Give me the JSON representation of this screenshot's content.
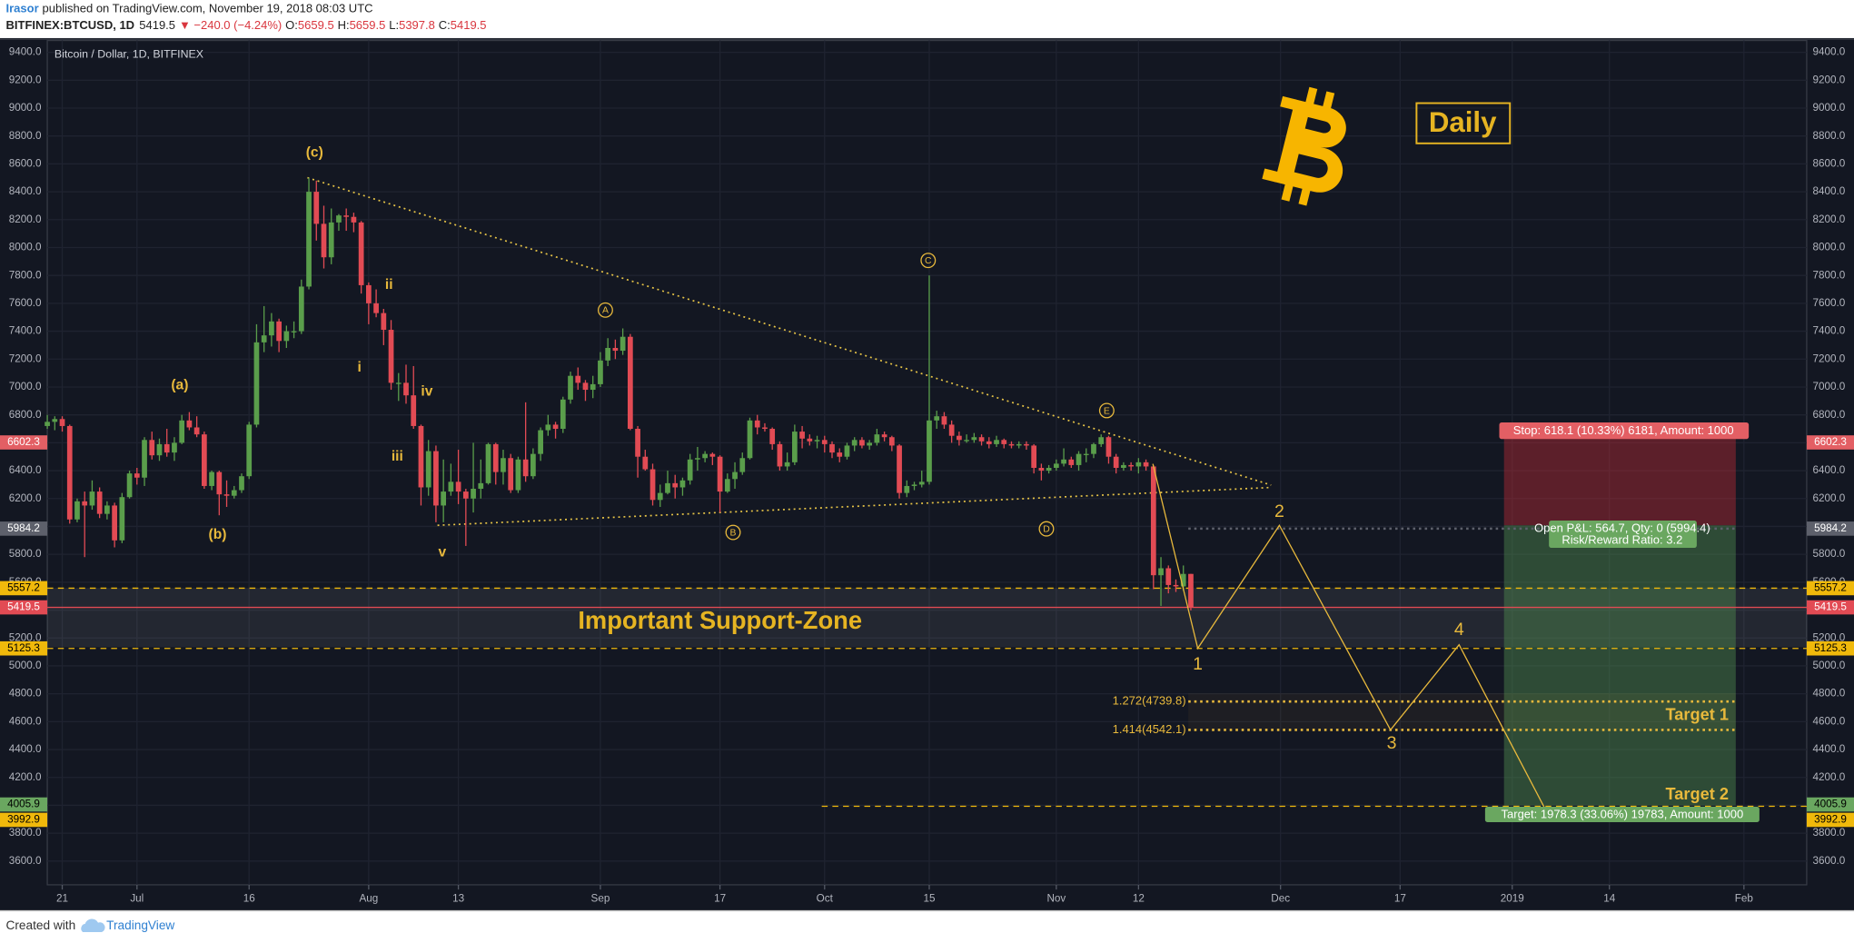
{
  "header": {
    "author": "Irasor",
    "published": "published on TradingView.com, November 19, 2018 08:03 UTC",
    "quote": {
      "symbol": "BITFINEX:BTCUSD, 1D",
      "last": "5419.5",
      "change": "▼ −240.0 (−4.24%)",
      "open_key": "O:",
      "open": "5659.5",
      "high_key": "H:",
      "high": "5659.5",
      "low_key": "L:",
      "low": "5397.8",
      "close_key": "C:",
      "close": "5419.5"
    }
  },
  "chart_data": {
    "type": "candlestick",
    "title": "Bitcoin / Dollar, 1D, BITFINEX",
    "up_color": "#5a9e4b",
    "down_color": "#e24b54",
    "grid": true,
    "xlim": [
      0,
      235.4
    ],
    "xticks": [
      {
        "value": 2,
        "label": "21"
      },
      {
        "value": 12,
        "label": "Jul"
      },
      {
        "value": 27,
        "label": "16"
      },
      {
        "value": 43,
        "label": "Aug"
      },
      {
        "value": 55,
        "label": "13"
      },
      {
        "value": 74,
        "label": "Sep"
      },
      {
        "value": 90,
        "label": "17"
      },
      {
        "value": 104,
        "label": "Oct"
      },
      {
        "value": 118,
        "label": "15"
      },
      {
        "value": 135,
        "label": "Nov"
      },
      {
        "value": 146,
        "label": "12"
      },
      {
        "value": 165,
        "label": "Dec"
      },
      {
        "value": 181,
        "label": "17"
      },
      {
        "value": 196,
        "label": "2019"
      },
      {
        "value": 209,
        "label": "14"
      },
      {
        "value": 227,
        "label": "Feb"
      }
    ],
    "ylim": [
      3430,
      9485
    ],
    "yticks": [
      {
        "value": 3600,
        "label": "3600.0"
      },
      {
        "value": 3800,
        "label": "3800.0"
      },
      {
        "value": 4000,
        "label": "4000.0"
      },
      {
        "value": 4200,
        "label": "4200.0"
      },
      {
        "value": 4400,
        "label": "4400.0"
      },
      {
        "value": 4600,
        "label": "4600.0"
      },
      {
        "value": 4800,
        "label": "4800.0"
      },
      {
        "value": 5000,
        "label": "5000.0"
      },
      {
        "value": 5200,
        "label": "5200.0"
      },
      {
        "value": 5400,
        "label": "5400.0"
      },
      {
        "value": 5600,
        "label": "5600.0"
      },
      {
        "value": 5800,
        "label": "5800.0"
      },
      {
        "value": 6000,
        "label": "6000.0"
      },
      {
        "value": 6200,
        "label": "6200.0"
      },
      {
        "value": 6400,
        "label": "6400.0"
      },
      {
        "value": 6600,
        "label": "6600.0"
      },
      {
        "value": 6800,
        "label": "6800.0"
      },
      {
        "value": 7000,
        "label": "7000.0"
      },
      {
        "value": 7200,
        "label": "7200.0"
      },
      {
        "value": 7400,
        "label": "7400.0"
      },
      {
        "value": 7600,
        "label": "7600.0"
      },
      {
        "value": 7800,
        "label": "7800.0"
      },
      {
        "value": 8000,
        "label": "8000.0"
      },
      {
        "value": 8200,
        "label": "8200.0"
      },
      {
        "value": 8400,
        "label": "8400.0"
      },
      {
        "value": 8600,
        "label": "8600.0"
      },
      {
        "value": 8800,
        "label": "8800.0"
      },
      {
        "value": 9000,
        "label": "9000.0"
      },
      {
        "value": 9200,
        "label": "9200.0"
      },
      {
        "value": 9400,
        "label": "9400.0"
      }
    ],
    "candles": [
      [
        6720,
        6800,
        6700,
        6750
      ],
      [
        6750,
        6790,
        6690,
        6770
      ],
      [
        6770,
        6790,
        6680,
        6720
      ],
      [
        6720,
        6730,
        6020,
        6050
      ],
      [
        6050,
        6200,
        6030,
        6180
      ],
      [
        6180,
        6250,
        5780,
        6150
      ],
      [
        6150,
        6330,
        6120,
        6250
      ],
      [
        6250,
        6280,
        6060,
        6090
      ],
      [
        6090,
        6180,
        6050,
        6150
      ],
      [
        6150,
        6170,
        5850,
        5900
      ],
      [
        5900,
        6240,
        5880,
        6210
      ],
      [
        6210,
        6400,
        6200,
        6380
      ],
      [
        6380,
        6420,
        6300,
        6350
      ],
      [
        6350,
        6640,
        6290,
        6620
      ],
      [
        6620,
        6680,
        6480,
        6510
      ],
      [
        6510,
        6630,
        6470,
        6590
      ],
      [
        6590,
        6700,
        6500,
        6530
      ],
      [
        6530,
        6640,
        6470,
        6600
      ],
      [
        6600,
        6800,
        6590,
        6760
      ],
      [
        6760,
        6820,
        6690,
        6710
      ],
      [
        6710,
        6790,
        6640,
        6660
      ],
      [
        6660,
        6680,
        6270,
        6290
      ],
      [
        6290,
        6400,
        6260,
        6390
      ],
      [
        6390,
        6400,
        6080,
        6230
      ],
      [
        6230,
        6330,
        6140,
        6220
      ],
      [
        6220,
        6290,
        6200,
        6260
      ],
      [
        6260,
        6380,
        6240,
        6360
      ],
      [
        6360,
        6750,
        6340,
        6730
      ],
      [
        6730,
        7450,
        6710,
        7320
      ],
      [
        7320,
        7580,
        7250,
        7370
      ],
      [
        7370,
        7530,
        7290,
        7470
      ],
      [
        7470,
        7490,
        7250,
        7330
      ],
      [
        7330,
        7440,
        7280,
        7400
      ],
      [
        7400,
        7470,
        7350,
        7400
      ],
      [
        7400,
        7770,
        7380,
        7720
      ],
      [
        7720,
        8500,
        7700,
        8400
      ],
      [
        8400,
        8480,
        8050,
        8170
      ],
      [
        8170,
        8300,
        7850,
        7930
      ],
      [
        7930,
        8280,
        7880,
        8180
      ],
      [
        8180,
        8240,
        8120,
        8230
      ],
      [
        8230,
        8280,
        8120,
        8220
      ],
      [
        8220,
        8250,
        8110,
        8180
      ],
      [
        8180,
        8190,
        7670,
        7730
      ],
      [
        7730,
        7750,
        7450,
        7600
      ],
      [
        7600,
        7700,
        7500,
        7530
      ],
      [
        7530,
        7560,
        7300,
        7410
      ],
      [
        7410,
        7480,
        6980,
        7030
      ],
      [
        7030,
        7100,
        6900,
        7030
      ],
      [
        7030,
        7160,
        6880,
        6940
      ],
      [
        6940,
        7150,
        6700,
        6720
      ],
      [
        6720,
        6730,
        6150,
        6280
      ],
      [
        6280,
        6620,
        6220,
        6540
      ],
      [
        6540,
        6580,
        6030,
        6150
      ],
      [
        6150,
        6480,
        6030,
        6250
      ],
      [
        6250,
        6450,
        6220,
        6320
      ],
      [
        6320,
        6550,
        6160,
        6250
      ],
      [
        6250,
        6270,
        5860,
        6200
      ],
      [
        6200,
        6600,
        6100,
        6270
      ],
      [
        6270,
        6480,
        6200,
        6310
      ],
      [
        6310,
        6600,
        6300,
        6590
      ],
      [
        6590,
        6600,
        6300,
        6390
      ],
      [
        6390,
        6550,
        6300,
        6490
      ],
      [
        6490,
        6520,
        6240,
        6260
      ],
      [
        6260,
        6500,
        6240,
        6480
      ],
      [
        6480,
        6890,
        6320,
        6360
      ],
      [
        6360,
        6560,
        6340,
        6520
      ],
      [
        6520,
        6710,
        6470,
        6690
      ],
      [
        6690,
        6800,
        6650,
        6730
      ],
      [
        6730,
        6750,
        6630,
        6700
      ],
      [
        6700,
        6930,
        6670,
        6910
      ],
      [
        6910,
        7110,
        6880,
        7080
      ],
      [
        7080,
        7140,
        6980,
        7030
      ],
      [
        7030,
        7050,
        6900,
        6980
      ],
      [
        6980,
        7080,
        6920,
        7020
      ],
      [
        7020,
        7250,
        7000,
        7190
      ],
      [
        7190,
        7350,
        7150,
        7280
      ],
      [
        7280,
        7340,
        7200,
        7260
      ],
      [
        7260,
        7420,
        7230,
        7360
      ],
      [
        7360,
        7380,
        6690,
        6700
      ],
      [
        6700,
        6720,
        6350,
        6500
      ],
      [
        6500,
        6550,
        6400,
        6410
      ],
      [
        6410,
        6450,
        6150,
        6190
      ],
      [
        6190,
        6300,
        6140,
        6240
      ],
      [
        6240,
        6400,
        6230,
        6310
      ],
      [
        6310,
        6370,
        6200,
        6280
      ],
      [
        6280,
        6350,
        6220,
        6330
      ],
      [
        6330,
        6520,
        6300,
        6480
      ],
      [
        6480,
        6570,
        6400,
        6490
      ],
      [
        6490,
        6540,
        6460,
        6520
      ],
      [
        6520,
        6530,
        6440,
        6500
      ],
      [
        6500,
        6510,
        6100,
        6250
      ],
      [
        6250,
        6380,
        6240,
        6340
      ],
      [
        6340,
        6460,
        6270,
        6390
      ],
      [
        6390,
        6530,
        6370,
        6490
      ],
      [
        6490,
        6780,
        6480,
        6760
      ],
      [
        6760,
        6800,
        6660,
        6710
      ],
      [
        6710,
        6740,
        6680,
        6700
      ],
      [
        6700,
        6710,
        6550,
        6590
      ],
      [
        6590,
        6610,
        6400,
        6430
      ],
      [
        6430,
        6530,
        6400,
        6460
      ],
      [
        6460,
        6730,
        6440,
        6680
      ],
      [
        6680,
        6720,
        6560,
        6630
      ],
      [
        6630,
        6660,
        6580,
        6610
      ],
      [
        6610,
        6650,
        6560,
        6620
      ],
      [
        6620,
        6650,
        6530,
        6590
      ],
      [
        6590,
        6610,
        6490,
        6530
      ],
      [
        6530,
        6560,
        6460,
        6500
      ],
      [
        6500,
        6600,
        6480,
        6580
      ],
      [
        6580,
        6640,
        6540,
        6620
      ],
      [
        6620,
        6640,
        6560,
        6580
      ],
      [
        6580,
        6620,
        6550,
        6600
      ],
      [
        6600,
        6700,
        6580,
        6660
      ],
      [
        6660,
        6680,
        6610,
        6640
      ],
      [
        6640,
        6650,
        6540,
        6580
      ],
      [
        6580,
        6590,
        6200,
        6240
      ],
      [
        6240,
        6330,
        6210,
        6290
      ],
      [
        6290,
        6320,
        6260,
        6300
      ],
      [
        6300,
        6400,
        6280,
        6320
      ],
      [
        6320,
        7800,
        6300,
        6760
      ],
      [
        6760,
        6830,
        6700,
        6790
      ],
      [
        6790,
        6820,
        6700,
        6730
      ],
      [
        6730,
        6760,
        6600,
        6650
      ],
      [
        6650,
        6680,
        6580,
        6620
      ],
      [
        6620,
        6660,
        6600,
        6620
      ],
      [
        6620,
        6670,
        6600,
        6640
      ],
      [
        6640,
        6660,
        6580,
        6610
      ],
      [
        6610,
        6640,
        6560,
        6590
      ],
      [
        6590,
        6650,
        6570,
        6620
      ],
      [
        6620,
        6630,
        6560,
        6590
      ],
      [
        6590,
        6610,
        6560,
        6580
      ],
      [
        6580,
        6610,
        6560,
        6590
      ],
      [
        6590,
        6610,
        6550,
        6580
      ],
      [
        6580,
        6590,
        6380,
        6420
      ],
      [
        6420,
        6450,
        6330,
        6400
      ],
      [
        6400,
        6440,
        6380,
        6420
      ],
      [
        6420,
        6480,
        6400,
        6450
      ],
      [
        6450,
        6560,
        6430,
        6480
      ],
      [
        6480,
        6500,
        6420,
        6440
      ],
      [
        6440,
        6540,
        6400,
        6520
      ],
      [
        6520,
        6560,
        6460,
        6520
      ],
      [
        6520,
        6600,
        6490,
        6590
      ],
      [
        6590,
        6660,
        6570,
        6640
      ],
      [
        6640,
        6650,
        6450,
        6500
      ],
      [
        6500,
        6520,
        6380,
        6420
      ],
      [
        6420,
        6460,
        6400,
        6440
      ],
      [
        6440,
        6460,
        6400,
        6430
      ],
      [
        6430,
        6490,
        6380,
        6460
      ],
      [
        6460,
        6480,
        6400,
        6430
      ],
      [
        6430,
        6440,
        5550,
        5650
      ],
      [
        5650,
        5780,
        5430,
        5700
      ],
      [
        5700,
        5720,
        5520,
        5580
      ],
      [
        5580,
        5620,
        5530,
        5570
      ],
      [
        5570,
        5720,
        5540,
        5659.5
      ],
      [
        5659.5,
        5659.5,
        5397.8,
        5419.5
      ]
    ],
    "price_levels": [
      {
        "value": 6602.3,
        "color": "#e35f64",
        "line": "none"
      },
      {
        "value": 5984.2,
        "color": "#5d606b",
        "line": "dotted"
      },
      {
        "value": 5557.2,
        "color": "#f0b90b",
        "line": "dashed"
      },
      {
        "value": 5419.5,
        "color": "#e24b54",
        "line": "solid"
      },
      {
        "value": 5125.3,
        "color": "#f0b90b",
        "line": "dashed"
      },
      {
        "value": 4005.9,
        "color": "#6aa760",
        "line": "none"
      },
      {
        "value": 3992.9,
        "color": "#f0b90b",
        "line": "dashed"
      }
    ],
    "wave_labels": [
      "(a)",
      "(b)",
      "(c)",
      "i",
      "ii",
      "iii",
      "iv",
      "v"
    ],
    "triangle_labels": [
      "A",
      "B",
      "C",
      "D",
      "E"
    ],
    "projection_labels": [
      "1",
      "2",
      "3",
      "4"
    ],
    "support_zone": "Important Support-Zone",
    "badge": "Daily",
    "fib_labels": [
      "1.272(4739.8)",
      "1.414(4542.1)"
    ],
    "targets": [
      "Target 1",
      "Target 2"
    ],
    "position": {
      "stop": "Stop: 618.1 (10.33%) 6181, Amount: 1000",
      "pnl": "Open P&L: 564.7, Qty: 0 (5994.4)",
      "ratio": "Risk/Reward Ratio: 3.2",
      "target": "Target: 1978.3 (33.06%) 19783, Amount: 1000"
    }
  },
  "footer": {
    "created_with": "Created with",
    "brand": "TradingView"
  }
}
